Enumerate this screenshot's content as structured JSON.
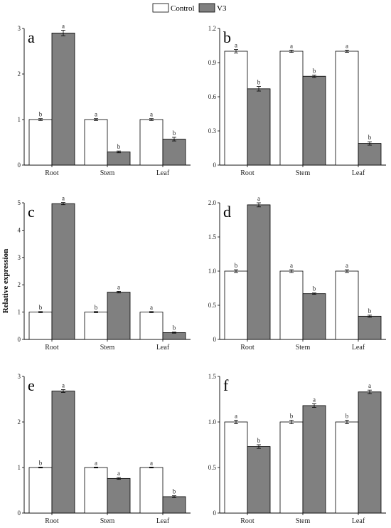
{
  "legend": {
    "items": [
      {
        "label": "Control",
        "color": "#ffffff"
      },
      {
        "label": "V3",
        "color": "#808080"
      }
    ]
  },
  "ylabel": "Relative expression",
  "chart_data": [
    {
      "type": "bar",
      "panel": "a",
      "categories": [
        "Root",
        "Stem",
        "Leaf"
      ],
      "series": [
        {
          "name": "Control",
          "values": [
            1,
            1,
            1
          ],
          "errors": [
            0.02,
            0.02,
            0.02
          ],
          "letters": [
            "b",
            "a",
            "a"
          ]
        },
        {
          "name": "V3",
          "values": [
            2.9,
            0.29,
            0.57
          ],
          "errors": [
            0.06,
            0.02,
            0.04
          ],
          "letters": [
            "a",
            "b",
            "b"
          ]
        }
      ],
      "ylim": [
        0,
        3
      ],
      "yticks": [
        "0",
        "1",
        "2",
        "3"
      ],
      "ytick_values": [
        0,
        1,
        2,
        3
      ]
    },
    {
      "type": "bar",
      "panel": "b",
      "categories": [
        "Root",
        "Stem",
        "Leaf"
      ],
      "series": [
        {
          "name": "Control",
          "values": [
            1,
            1,
            1
          ],
          "errors": [
            0.015,
            0.01,
            0.01
          ],
          "letters": [
            "a",
            "a",
            "a"
          ]
        },
        {
          "name": "V3",
          "values": [
            0.67,
            0.78,
            0.19
          ],
          "errors": [
            0.02,
            0.01,
            0.015
          ],
          "letters": [
            "b",
            "b",
            "b"
          ]
        }
      ],
      "ylim": [
        0,
        1.2
      ],
      "yticks": [
        "0",
        "0.3",
        "0.6",
        "0.9",
        "1.2"
      ],
      "ytick_values": [
        0,
        0.3,
        0.6,
        0.9,
        1.2
      ]
    },
    {
      "type": "bar",
      "panel": "c",
      "categories": [
        "Root",
        "Stem",
        "Leaf"
      ],
      "series": [
        {
          "name": "Control",
          "values": [
            1,
            1,
            1
          ],
          "errors": [
            0.02,
            0.02,
            0.02
          ],
          "letters": [
            "b",
            "b",
            "a"
          ]
        },
        {
          "name": "V3",
          "values": [
            4.97,
            1.73,
            0.25
          ],
          "errors": [
            0.04,
            0.03,
            0.02
          ],
          "letters": [
            "a",
            "a",
            "b"
          ]
        }
      ],
      "ylim": [
        0,
        5
      ],
      "yticks": [
        "0",
        "1",
        "2",
        "3",
        "4",
        "5"
      ],
      "ytick_values": [
        0,
        1,
        2,
        3,
        4,
        5
      ]
    },
    {
      "type": "bar",
      "panel": "d",
      "categories": [
        "Root",
        "Stem",
        "Leaf"
      ],
      "series": [
        {
          "name": "Control",
          "values": [
            1,
            1,
            1
          ],
          "errors": [
            0.02,
            0.02,
            0.02
          ],
          "letters": [
            "b",
            "a",
            "a"
          ]
        },
        {
          "name": "V3",
          "values": [
            1.97,
            0.67,
            0.34
          ],
          "errors": [
            0.03,
            0.01,
            0.015
          ],
          "letters": [
            "a",
            "b",
            "b"
          ]
        }
      ],
      "ylim": [
        0,
        2.0
      ],
      "yticks": [
        "0",
        "0.5",
        "1.0",
        "1.5",
        "2.0"
      ],
      "ytick_values": [
        0,
        0.5,
        1.0,
        1.5,
        2.0
      ]
    },
    {
      "type": "bar",
      "panel": "e",
      "categories": [
        "Root",
        "Stem",
        "Leaf"
      ],
      "series": [
        {
          "name": "Control",
          "values": [
            1,
            1,
            1
          ],
          "errors": [
            0.01,
            0.01,
            0.01
          ],
          "letters": [
            "b",
            "a",
            "a"
          ]
        },
        {
          "name": "V3",
          "values": [
            2.68,
            0.76,
            0.36
          ],
          "errors": [
            0.03,
            0.02,
            0.02
          ],
          "letters": [
            "a",
            "a",
            "b"
          ]
        }
      ],
      "ylim": [
        0,
        3
      ],
      "yticks": [
        "0",
        "1",
        "2",
        "3"
      ],
      "ytick_values": [
        0,
        1,
        2,
        3
      ]
    },
    {
      "type": "bar",
      "panel": "f",
      "categories": [
        "Root",
        "Stem",
        "Leaf"
      ],
      "series": [
        {
          "name": "Control",
          "values": [
            1,
            1,
            1
          ],
          "errors": [
            0.02,
            0.02,
            0.02
          ],
          "letters": [
            "a",
            "b",
            "b"
          ]
        },
        {
          "name": "V3",
          "values": [
            0.73,
            1.18,
            1.33
          ],
          "errors": [
            0.02,
            0.02,
            0.02
          ],
          "letters": [
            "b",
            "a",
            "a"
          ]
        }
      ],
      "ylim": [
        0,
        1.5
      ],
      "yticks": [
        "0",
        "0.5",
        "1.0",
        "1.5"
      ],
      "ytick_values": [
        0,
        0.5,
        1.0,
        1.5
      ]
    }
  ]
}
